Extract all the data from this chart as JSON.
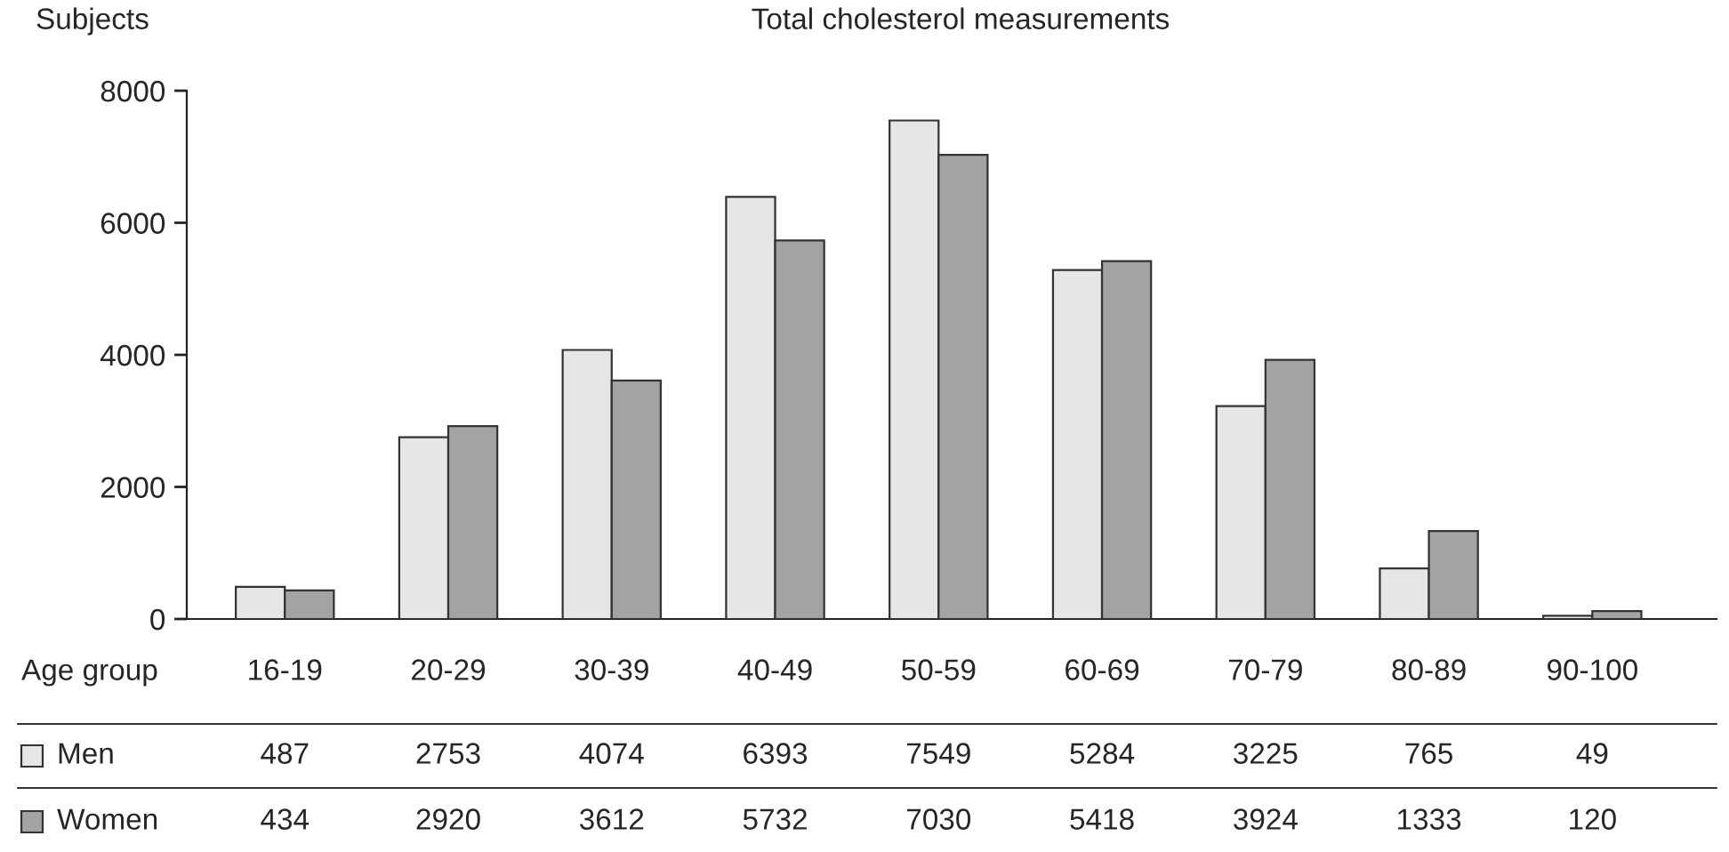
{
  "chart_data": {
    "type": "bar",
    "title": "Total cholesterol measurements",
    "ylabel": "Subjects",
    "xlabel": "Age group",
    "categories": [
      "16-19",
      "20-29",
      "30-39",
      "40-49",
      "50-59",
      "60-69",
      "70-79",
      "80-89",
      "90-100"
    ],
    "series": [
      {
        "name": "Men",
        "color": "#e6e6e6",
        "values": [
          487,
          2753,
          4074,
          6393,
          7549,
          5284,
          3225,
          765,
          49
        ]
      },
      {
        "name": "Women",
        "color": "#a3a3a3",
        "values": [
          434,
          2920,
          3612,
          5732,
          7030,
          5418,
          3924,
          1333,
          120
        ]
      }
    ],
    "ylim": [
      0,
      8000
    ],
    "yticks": [
      0,
      2000,
      4000,
      6000,
      8000
    ],
    "grid": false,
    "legend": "bottom",
    "data_labels": true
  }
}
